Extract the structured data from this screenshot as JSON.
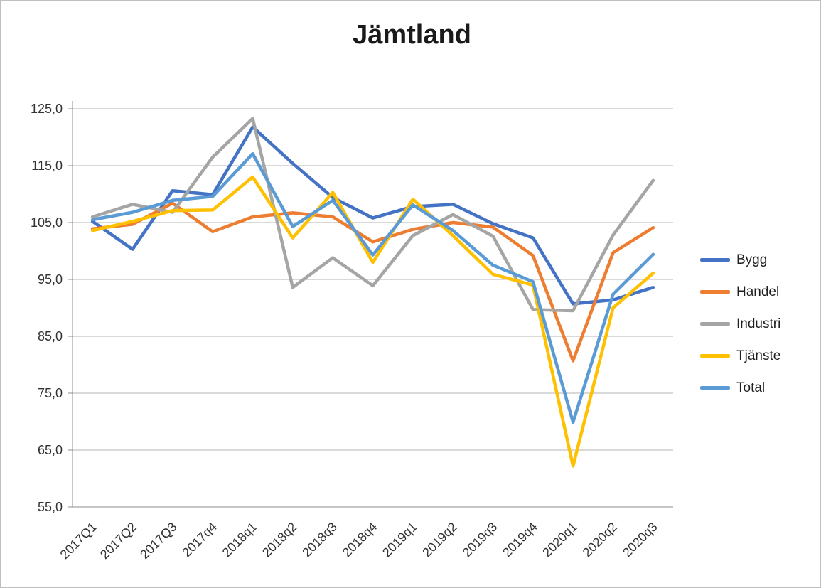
{
  "title": "Jämtland",
  "chart_data": {
    "type": "line",
    "title": "Jämtland",
    "categories": [
      "2017Q1",
      "2017Q2",
      "2017Q3",
      "2017q4",
      "2018q1",
      "2018q2",
      "2018q3",
      "2018q4",
      "2019q1",
      "2019q2",
      "2019q3",
      "2019q4",
      "2020q1",
      "2020q2",
      "2020q3"
    ],
    "series": [
      {
        "name": "Bygg",
        "color": "#4472C4",
        "values": [
          105.2,
          100.3,
          110.6,
          109.9,
          121.8,
          115.4,
          109.4,
          105.8,
          107.8,
          108.2,
          104.8,
          102.3,
          90.7,
          91.4,
          93.6
        ]
      },
      {
        "name": "Handel",
        "color": "#ED7D31",
        "values": [
          103.9,
          104.7,
          108.4,
          103.4,
          106.0,
          106.7,
          106.0,
          101.6,
          103.8,
          105.0,
          104.2,
          99.2,
          80.7,
          99.7,
          104.1
        ]
      },
      {
        "name": "Industri",
        "color": "#A5A5A5",
        "values": [
          106.0,
          108.2,
          106.8,
          116.5,
          123.3,
          93.6,
          98.8,
          93.9,
          102.7,
          106.4,
          102.6,
          89.7,
          89.5,
          102.8,
          112.4
        ]
      },
      {
        "name": "Tjänste",
        "color": "#FFC000",
        "values": [
          103.6,
          105.2,
          107.1,
          107.2,
          113.0,
          102.3,
          110.3,
          98.0,
          109.1,
          102.7,
          95.9,
          94.0,
          62.2,
          90.0,
          96.1
        ]
      },
      {
        "name": "Total",
        "color": "#5B9BD5",
        "values": [
          105.5,
          106.8,
          108.9,
          109.6,
          117.1,
          104.3,
          108.9,
          99.3,
          108.1,
          103.6,
          97.5,
          94.6,
          69.9,
          92.4,
          99.4
        ]
      }
    ],
    "yticks": [
      {
        "label": "125,0",
        "value": 125
      },
      {
        "label": "115,0",
        "value": 115
      },
      {
        "label": "105,0",
        "value": 105
      },
      {
        "label": "95,0",
        "value": 95
      },
      {
        "label": "85,0",
        "value": 85
      },
      {
        "label": "75,0",
        "value": 75
      },
      {
        "label": "65,0",
        "value": 65
      },
      {
        "label": "55,0",
        "value": 55
      }
    ],
    "ylim": [
      55,
      125
    ],
    "xlabel": "",
    "ylabel": "",
    "grid": true,
    "legend_position": "right"
  }
}
